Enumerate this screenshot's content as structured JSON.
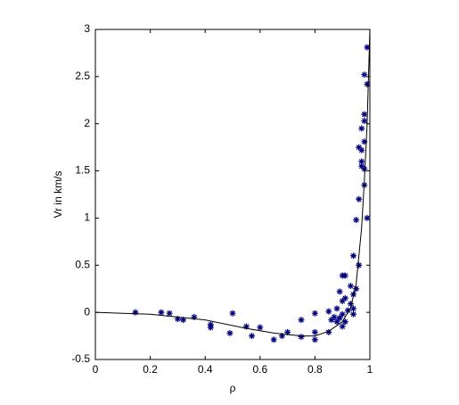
{
  "chart_data": {
    "type": "scatter",
    "xlabel": "ρ",
    "ylabel": "Vr in km/s",
    "xlim": [
      0,
      1
    ],
    "xticks": [
      0,
      0.2,
      0.4,
      0.6,
      0.8,
      1
    ],
    "ylim": [
      -0.5,
      3
    ],
    "yticks": [
      -0.5,
      0,
      0.5,
      1,
      1.5,
      2,
      2.5,
      3
    ],
    "grid": false,
    "series": [
      {
        "style": "marker",
        "color": "#00007f",
        "x": [
          0.146,
          0.24,
          0.27,
          0.3,
          0.32,
          0.36,
          0.42,
          0.42,
          0.5,
          0.49,
          0.55,
          0.57,
          0.6,
          0.65,
          0.68,
          0.7,
          0.75,
          0.75,
          0.8,
          0.8,
          0.8,
          0.85,
          0.85,
          0.86,
          0.87,
          0.88,
          0.88,
          0.89,
          0.89,
          0.9,
          0.9,
          0.9,
          0.9,
          0.91,
          0.91,
          0.91,
          0.92,
          0.93,
          0.93,
          0.94,
          0.94,
          0.94,
          0.94,
          0.95,
          0.95,
          0.96,
          0.96,
          0.96,
          0.97,
          0.97,
          0.97,
          0.97,
          0.98,
          0.98,
          0.98,
          0.98,
          0.98,
          0.99,
          0.98,
          0.99,
          0.99
        ],
        "values": [
          0.0,
          0.0,
          -0.01,
          -0.07,
          -0.08,
          -0.05,
          -0.13,
          -0.16,
          -0.01,
          -0.22,
          -0.15,
          -0.25,
          -0.16,
          -0.29,
          -0.25,
          -0.21,
          -0.26,
          -0.08,
          -0.21,
          -0.01,
          -0.29,
          -0.21,
          0.01,
          -0.08,
          -0.05,
          -0.1,
          0.04,
          0.22,
          -0.06,
          -0.15,
          0.12,
          0.39,
          -0.02,
          -0.1,
          0.39,
          0.15,
          0.02,
          0.09,
          0.28,
          0.6,
          0.19,
          -0.02,
          0.04,
          0.25,
          0.98,
          1.2,
          0.5,
          1.75,
          1.72,
          1.6,
          1.55,
          1.95,
          2.03,
          2.1,
          1.81,
          1.52,
          1.35,
          1.0,
          2.52,
          2.81,
          2.42
        ]
      },
      {
        "style": "line",
        "color": "#000000",
        "x": [
          0,
          0.2,
          0.4,
          0.55,
          0.65,
          0.75,
          0.8,
          0.85,
          0.9,
          0.93,
          0.95,
          0.97,
          0.98,
          0.99,
          1.0
        ],
        "values": [
          0,
          -0.02,
          -0.08,
          -0.17,
          -0.22,
          -0.25,
          -0.25,
          -0.2,
          -0.1,
          0.05,
          0.3,
          0.9,
          1.4,
          2.0,
          3.0
        ]
      }
    ]
  }
}
